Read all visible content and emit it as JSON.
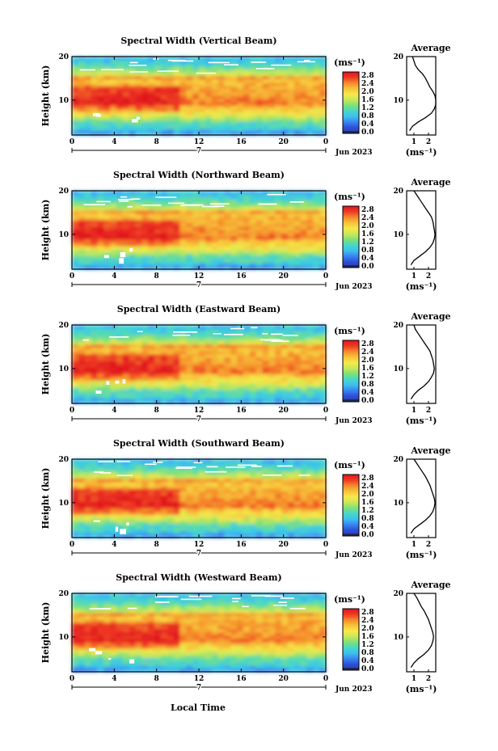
{
  "figure": {
    "xlabel": "Local Time"
  },
  "colorbar": {
    "unit": "(ms⁻¹)",
    "ticks": [
      "2.8",
      "2.4",
      "2.0",
      "1.6",
      "1.2",
      "0.8",
      "0.4",
      "0.0"
    ],
    "stops": [
      "#3a3aa0",
      "#2a4fd6",
      "#3b82f0",
      "#3cc0f0",
      "#46d8c8",
      "#7ee07a",
      "#c8e85a",
      "#f5e94a",
      "#f7c23a",
      "#f58a2a",
      "#ee3a24",
      "#e0141e"
    ]
  },
  "chart_data": [
    {
      "type": "heatmap",
      "title": "Spectral Width (Vertical Beam)",
      "ylabel": "Height (km)",
      "xticks": [
        "0",
        "4",
        "8",
        "12",
        "16",
        "20",
        "0"
      ],
      "yticks": [
        "20",
        "10"
      ],
      "date_label": "7",
      "date_right": "Jun 2023",
      "xlim": [
        0,
        24
      ],
      "ylim": [
        2,
        20
      ],
      "colorbar_unit": "(ms⁻¹)",
      "colorbar_range": [
        0.0,
        2.8
      ],
      "profile": {
        "title": "Average",
        "xlabel": "(ms⁻¹)",
        "xticks": [
          "1",
          "2"
        ],
        "yticks": [
          "20",
          "10"
        ],
        "xlim": [
          0.5,
          2.5
        ],
        "heights": [
          3,
          4,
          5,
          6,
          7,
          8,
          9,
          10,
          11,
          12,
          13,
          14,
          15,
          16,
          17,
          18,
          19,
          20
        ],
        "values": [
          0.7,
          0.9,
          1.3,
          1.8,
          2.2,
          2.4,
          2.5,
          2.5,
          2.45,
          2.3,
          2.1,
          1.95,
          1.8,
          1.6,
          1.3,
          1.1,
          1.0,
          0.9
        ]
      }
    },
    {
      "type": "heatmap",
      "title": "Spectral Width (Northward Beam)",
      "ylabel": "Height (km)",
      "xticks": [
        "0",
        "4",
        "8",
        "12",
        "16",
        "20",
        "0"
      ],
      "yticks": [
        "20",
        "10"
      ],
      "date_label": "7",
      "date_right": "Jun 2023",
      "xlim": [
        0,
        24
      ],
      "ylim": [
        2,
        20
      ],
      "colorbar_unit": "(ms⁻¹)",
      "colorbar_range": [
        0.0,
        2.8
      ],
      "profile": {
        "title": "Average",
        "xlabel": "(ms⁻¹)",
        "xticks": [
          "1",
          "2"
        ],
        "yticks": [
          "20",
          "10"
        ],
        "xlim": [
          0.5,
          2.5
        ],
        "heights": [
          3,
          4,
          5,
          6,
          7,
          8,
          9,
          10,
          11,
          12,
          13,
          14,
          15,
          16,
          17,
          18,
          19,
          20
        ],
        "values": [
          0.8,
          1.0,
          1.4,
          1.8,
          2.1,
          2.3,
          2.4,
          2.45,
          2.4,
          2.35,
          2.3,
          2.2,
          2.0,
          1.8,
          1.6,
          1.4,
          1.2,
          1.0
        ]
      }
    },
    {
      "type": "heatmap",
      "title": "Spectral Width (Eastward Beam)",
      "ylabel": "Height (km)",
      "xticks": [
        "0",
        "4",
        "8",
        "12",
        "16",
        "20",
        "0"
      ],
      "yticks": [
        "20",
        "10"
      ],
      "date_label": "7",
      "date_right": "Jun 2023",
      "xlim": [
        0,
        24
      ],
      "ylim": [
        2,
        20
      ],
      "colorbar_unit": "(ms⁻¹)",
      "colorbar_range": [
        0.0,
        2.8
      ],
      "profile": {
        "title": "Average",
        "xlabel": "(ms⁻¹)",
        "xticks": [
          "1",
          "2"
        ],
        "yticks": [
          "20",
          "10"
        ],
        "xlim": [
          0.5,
          2.5
        ],
        "heights": [
          3,
          4,
          5,
          6,
          7,
          8,
          9,
          10,
          11,
          12,
          13,
          14,
          15,
          16,
          17,
          18,
          19,
          20
        ],
        "values": [
          0.8,
          1.0,
          1.3,
          1.7,
          2.0,
          2.2,
          2.35,
          2.4,
          2.35,
          2.3,
          2.2,
          2.1,
          1.9,
          1.7,
          1.5,
          1.3,
          1.1,
          1.0
        ]
      }
    },
    {
      "type": "heatmap",
      "title": "Spectral Width (Southward Beam)",
      "ylabel": "Height (km)",
      "xticks": [
        "0",
        "4",
        "8",
        "12",
        "16",
        "20",
        "0"
      ],
      "yticks": [
        "20",
        "10"
      ],
      "date_label": "7",
      "date_right": "Jun 2023",
      "xlim": [
        0,
        24
      ],
      "ylim": [
        2,
        20
      ],
      "colorbar_unit": "(ms⁻¹)",
      "colorbar_range": [
        0.0,
        2.8
      ],
      "profile": {
        "title": "Average",
        "xlabel": "(ms⁻¹)",
        "xticks": [
          "1",
          "2"
        ],
        "yticks": [
          "20",
          "10"
        ],
        "xlim": [
          0.5,
          2.5
        ],
        "heights": [
          3,
          4,
          5,
          6,
          7,
          8,
          9,
          10,
          11,
          12,
          13,
          14,
          15,
          16,
          17,
          18,
          19,
          20
        ],
        "values": [
          0.8,
          1.0,
          1.4,
          1.8,
          2.1,
          2.3,
          2.4,
          2.45,
          2.4,
          2.3,
          2.2,
          2.1,
          1.95,
          1.8,
          1.6,
          1.4,
          1.2,
          1.0
        ]
      }
    },
    {
      "type": "heatmap",
      "title": "Spectral Width (Westward Beam)",
      "ylabel": "Height (km)",
      "xticks": [
        "0",
        "4",
        "8",
        "12",
        "16",
        "20",
        "0"
      ],
      "yticks": [
        "20",
        "10"
      ],
      "date_label": "7",
      "date_right": "Jun 2023",
      "xlim": [
        0,
        24
      ],
      "ylim": [
        2,
        20
      ],
      "colorbar_unit": "(ms⁻¹)",
      "colorbar_range": [
        0.0,
        2.8
      ],
      "profile": {
        "title": "Average",
        "xlabel": "(ms⁻¹)",
        "xticks": [
          "1",
          "2"
        ],
        "yticks": [
          "20",
          "10"
        ],
        "xlim": [
          0.5,
          2.5
        ],
        "heights": [
          3,
          4,
          5,
          6,
          7,
          8,
          9,
          10,
          11,
          12,
          13,
          14,
          15,
          16,
          17,
          18,
          19,
          20
        ],
        "values": [
          0.8,
          1.0,
          1.3,
          1.7,
          2.0,
          2.2,
          2.3,
          2.35,
          2.3,
          2.2,
          2.1,
          2.0,
          1.85,
          1.7,
          1.5,
          1.35,
          1.2,
          1.0
        ]
      }
    }
  ]
}
